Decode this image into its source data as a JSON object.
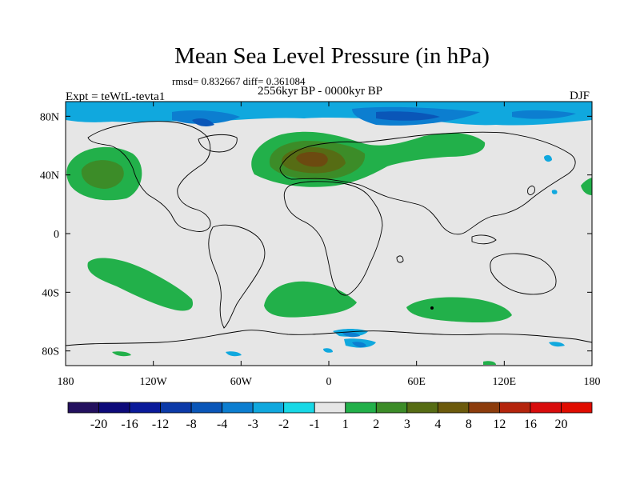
{
  "title": "Mean Sea Level Pressure (in hPa)",
  "stats": "rmsd= 0.832667  diff= 0.361084",
  "period": "2556kyr BP - 0000kyr BP",
  "experiment": "Expt = teWtL-tevta1",
  "season": "DJF",
  "axes": {
    "lon_labels": [
      "180",
      "120W",
      "60W",
      "0",
      "60E",
      "120E",
      "180"
    ],
    "lat_labels": [
      "80N",
      "40N",
      "0",
      "40S",
      "80S"
    ]
  },
  "colorbar": {
    "labels": [
      "-20",
      "-16",
      "-12",
      "-8",
      "-4",
      "-3",
      "-2",
      "-1",
      "1",
      "2",
      "3",
      "4",
      "8",
      "12",
      "16",
      "20"
    ],
    "colors": [
      "#23105e",
      "#0d0a7a",
      "#0a1a9a",
      "#0c3aa8",
      "#0a56b8",
      "#0c7ed0",
      "#10a8de",
      "#18d8e6",
      "#e6e6e6",
      "#22b04a",
      "#3c8c28",
      "#566c14",
      "#6c5a0c",
      "#8c3c0c",
      "#b4240c",
      "#d80c0c",
      "#e00c00"
    ]
  },
  "field_colors": {
    "neutral": "#e6e6e6",
    "pos2": "#22b04a",
    "pos3": "#3c8c28",
    "pos4": "#566c14",
    "pos8": "#6c4a10",
    "neg2": "#10a8de",
    "neg3": "#0c7ed0",
    "neg4": "#0a56b8"
  }
}
